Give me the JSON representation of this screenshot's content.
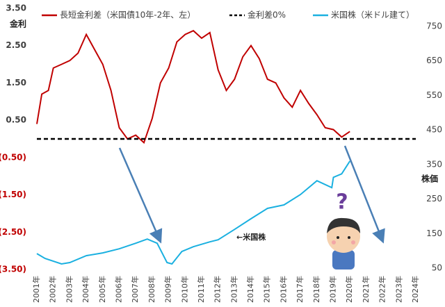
{
  "chart_data": {
    "type": "line",
    "y_label": "金利",
    "y2_label": "株価",
    "annotation": "←米国株",
    "xlim": [
      2001,
      2024
    ],
    "xticks": [
      {
        "value": 2001,
        "label": "2001年"
      },
      {
        "value": 2002,
        "label": "2002年"
      },
      {
        "value": 2003,
        "label": "2003年"
      },
      {
        "value": 2004,
        "label": "2004年"
      },
      {
        "value": 2005,
        "label": "2005年"
      },
      {
        "value": 2006,
        "label": "2006年"
      },
      {
        "value": 2007,
        "label": "2007年"
      },
      {
        "value": 2008,
        "label": "2008年"
      },
      {
        "value": 2009,
        "label": "2009年"
      },
      {
        "value": 2010,
        "label": "2010年"
      },
      {
        "value": 2011,
        "label": "2011年"
      },
      {
        "value": 2012,
        "label": "2012年"
      },
      {
        "value": 2013,
        "label": "2013年"
      },
      {
        "value": 2014,
        "label": "2014年"
      },
      {
        "value": 2015,
        "label": "2015年"
      },
      {
        "value": 2016,
        "label": "2016年"
      },
      {
        "value": 2017,
        "label": "2017年"
      },
      {
        "value": 2018,
        "label": "2018年"
      },
      {
        "value": 2019,
        "label": "2019年"
      },
      {
        "value": 2020,
        "label": "2020年"
      },
      {
        "value": 2021,
        "label": "2021年"
      },
      {
        "value": 2022,
        "label": "2022年"
      },
      {
        "value": 2023,
        "label": "2023年"
      },
      {
        "value": 2024,
        "label": "2024年"
      }
    ],
    "ylim": [
      -3.5,
      3.5
    ],
    "yticks": [
      {
        "value": 3.5,
        "label": "3.50"
      },
      {
        "value": 2.5,
        "label": "2.50"
      },
      {
        "value": 1.5,
        "label": "1.50"
      },
      {
        "value": 0.5,
        "label": "0.50"
      },
      {
        "value": -0.5,
        "label": "(0.50)"
      },
      {
        "value": -1.5,
        "label": "(1.50)"
      },
      {
        "value": -2.5,
        "label": "(2.50)"
      },
      {
        "value": -3.5,
        "label": "(3.50)"
      }
    ],
    "negative_tick_color": "#c00000",
    "y2lim": [
      50,
      750
    ],
    "y2ticks": [
      750,
      650,
      550,
      450,
      350,
      250,
      150,
      50
    ],
    "series": [
      {
        "name": "長短金利差（米国債10年-2年、左）",
        "color": "#c00000",
        "x": [
          2001.0,
          2001.3,
          2001.7,
          2002.0,
          2002.5,
          2003.0,
          2003.5,
          2004.0,
          2004.5,
          2005.0,
          2005.5,
          2006.0,
          2006.5,
          2007.0,
          2007.5,
          2008.0,
          2008.5,
          2009.0,
          2009.5,
          2010.0,
          2010.5,
          2011.0,
          2011.5,
          2012.0,
          2012.5,
          2013.0,
          2013.5,
          2014.0,
          2014.5,
          2015.0,
          2015.5,
          2016.0,
          2016.5,
          2017.0,
          2017.5,
          2018.0,
          2018.5,
          2019.0,
          2019.5,
          2020.0
        ],
        "values": [
          0.4,
          1.2,
          1.3,
          1.9,
          2.0,
          2.1,
          2.3,
          2.8,
          2.4,
          2.0,
          1.3,
          0.3,
          0.0,
          0.1,
          -0.1,
          0.55,
          1.5,
          1.9,
          2.6,
          2.8,
          2.9,
          2.7,
          2.85,
          1.85,
          1.3,
          1.6,
          2.2,
          2.5,
          2.15,
          1.6,
          1.5,
          1.1,
          0.85,
          1.3,
          0.95,
          0.65,
          0.3,
          0.25,
          0.05,
          0.2
        ]
      },
      {
        "name": "金利差0%",
        "color": "#000000",
        "dashed": true,
        "x": [
          2001,
          2024
        ],
        "values": [
          0,
          0
        ]
      },
      {
        "name": "米国株（米ドル建て）",
        "color": "#1ab0e0",
        "axis": "y2",
        "x": [
          2001.0,
          2001.5,
          2002.5,
          2003.0,
          2004.0,
          2005.0,
          2006.0,
          2007.0,
          2007.7,
          2008.3,
          2008.9,
          2009.2,
          2009.8,
          2010.5,
          2011.5,
          2012.0,
          2013.0,
          2014.0,
          2015.0,
          2016.0,
          2017.0,
          2018.0,
          2018.9,
          2019.0,
          2019.5,
          2020.0
        ],
        "values": [
          92,
          78,
          62,
          66,
          86,
          94,
          106,
          122,
          134,
          122,
          66,
          62,
          98,
          112,
          126,
          132,
          162,
          193,
          223,
          233,
          263,
          303,
          283,
          313,
          323,
          360
        ]
      }
    ]
  }
}
